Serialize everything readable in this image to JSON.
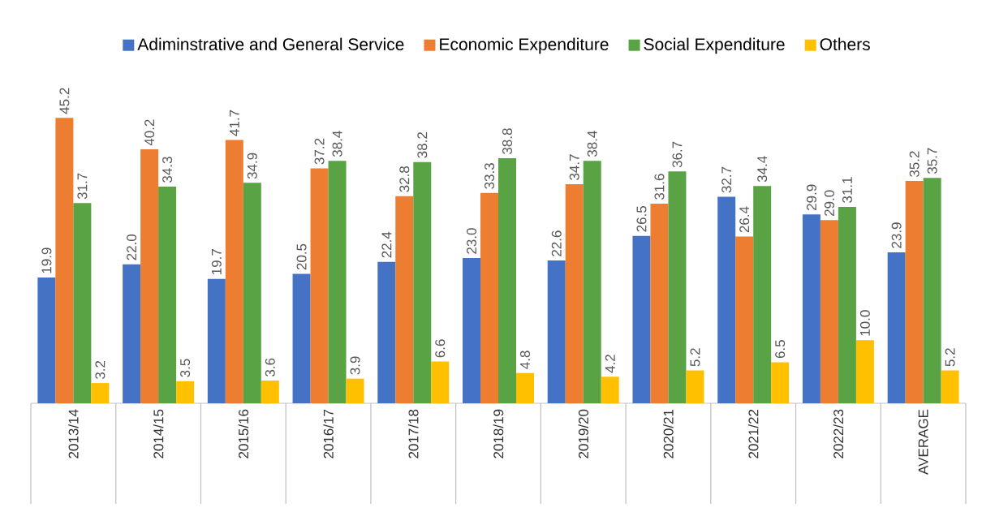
{
  "chart_data": {
    "type": "bar",
    "categories": [
      "2013/14",
      "2014/15",
      "2015/16",
      "2016/17",
      "2017/18",
      "2018/19",
      "2019/20",
      "2020/21",
      "2021/22",
      "2022/23",
      "AVERAGE"
    ],
    "series": [
      {
        "name": "Adiminstrative and General Service",
        "color": "#4472c4",
        "values": [
          19.9,
          22.0,
          19.7,
          20.5,
          22.4,
          23.0,
          22.6,
          26.5,
          32.7,
          29.9,
          23.9
        ],
        "value_labels": [
          "19.9",
          "22.0",
          "19.7",
          "20.5",
          "22.4",
          "23.0",
          "22.6",
          "26.5",
          "32.7",
          "29.9",
          "23.9"
        ]
      },
      {
        "name": "Economic Expenditure",
        "color": "#ed7d31",
        "values": [
          45.2,
          40.2,
          41.7,
          37.2,
          32.8,
          33.3,
          34.7,
          31.6,
          26.4,
          29.0,
          35.2
        ],
        "value_labels": [
          "45.2",
          "40.2",
          "41.7",
          "37.2",
          "32.8",
          "33.3",
          "34.7",
          "31.6",
          "26.4",
          "29.0",
          "35.2"
        ]
      },
      {
        "name": "Social Expenditure",
        "color": "#5aa345",
        "values": [
          31.7,
          34.3,
          34.9,
          38.4,
          38.2,
          38.8,
          38.4,
          36.7,
          34.4,
          31.1,
          35.7
        ],
        "value_labels": [
          "31.7",
          "34.3",
          "34.9",
          "38.4",
          "38.2",
          "38.8",
          "38.4",
          "36.7",
          "34.4",
          "31.1",
          "35.7"
        ]
      },
      {
        "name": "Others",
        "color": "#ffc000",
        "values": [
          3.2,
          3.5,
          3.6,
          3.9,
          6.6,
          4.8,
          4.2,
          5.2,
          6.5,
          10.0,
          5.2
        ],
        "value_labels": [
          "3.2",
          "3.5",
          "3.6",
          "3.9",
          "6.6",
          "4.8",
          "4.2",
          "5.2",
          "6.5",
          "10.0",
          "5.2"
        ]
      }
    ],
    "legend": "top"
  }
}
